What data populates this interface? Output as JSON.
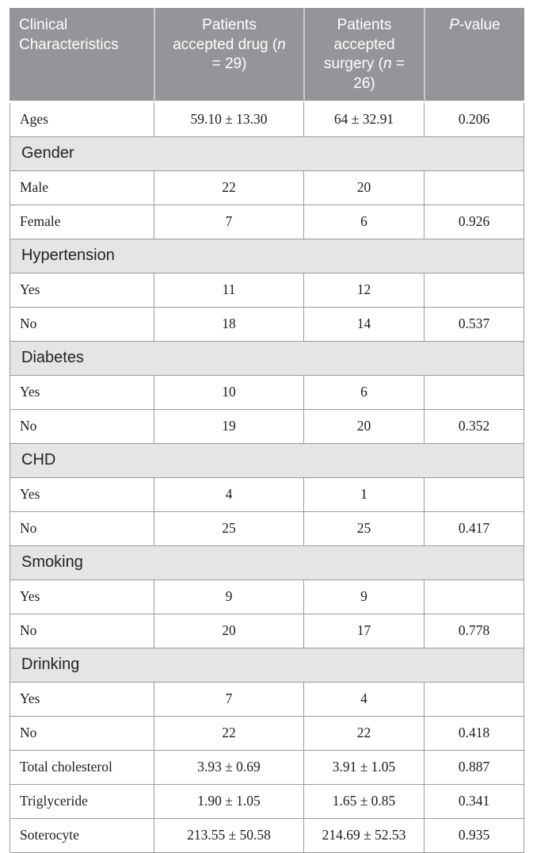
{
  "colors": {
    "header_bg": "#939598",
    "header_text": "#ffffff",
    "header_divider": "#c7c9ca",
    "section_bg": "#e4e5e5",
    "grid_border": "#9b9b9b",
    "body_text": "#1c1c1c"
  },
  "table": {
    "columns": [
      {
        "id": "characteristic",
        "segments": [
          {
            "t": "Clinical Characteristics"
          }
        ]
      },
      {
        "id": "drug",
        "segments": [
          {
            "t": "Patients accepted drug ("
          },
          {
            "t": "n",
            "i": true
          },
          {
            "t": " = 29)"
          }
        ]
      },
      {
        "id": "surgery",
        "segments": [
          {
            "t": "Patients accepted surgery ("
          },
          {
            "t": "n",
            "i": true
          },
          {
            "t": " = 26)"
          }
        ]
      },
      {
        "id": "pvalue",
        "segments": [
          {
            "t": "P",
            "i": true
          },
          {
            "t": "-value"
          }
        ]
      }
    ],
    "rows": [
      {
        "type": "data",
        "label": "Ages",
        "drug": "59.10 ± 13.30",
        "surgery": "64 ± 32.91",
        "p": "0.206"
      },
      {
        "type": "section",
        "label": "Gender"
      },
      {
        "type": "data",
        "label": "Male",
        "drug": "22",
        "surgery": "20",
        "p": ""
      },
      {
        "type": "data",
        "label": "Female",
        "drug": "7",
        "surgery": "6",
        "p": "0.926"
      },
      {
        "type": "section",
        "label": "Hypertension"
      },
      {
        "type": "data",
        "label": "Yes",
        "drug": "11",
        "surgery": "12",
        "p": ""
      },
      {
        "type": "data",
        "label": "No",
        "drug": "18",
        "surgery": "14",
        "p": "0.537"
      },
      {
        "type": "section",
        "label": "Diabetes"
      },
      {
        "type": "data",
        "label": "Yes",
        "drug": "10",
        "surgery": "6",
        "p": ""
      },
      {
        "type": "data",
        "label": "No",
        "drug": "19",
        "surgery": "20",
        "p": "0.352"
      },
      {
        "type": "section",
        "label": "CHD"
      },
      {
        "type": "data",
        "label": "Yes",
        "drug": "4",
        "surgery": "1",
        "p": ""
      },
      {
        "type": "data",
        "label": "No",
        "drug": "25",
        "surgery": "25",
        "p": "0.417"
      },
      {
        "type": "section",
        "label": "Smoking"
      },
      {
        "type": "data",
        "label": "Yes",
        "drug": "9",
        "surgery": "9",
        "p": ""
      },
      {
        "type": "data",
        "label": "No",
        "drug": "20",
        "surgery": "17",
        "p": "0.778"
      },
      {
        "type": "section",
        "label": "Drinking"
      },
      {
        "type": "data",
        "label": "Yes",
        "drug": "7",
        "surgery": "4",
        "p": ""
      },
      {
        "type": "data",
        "label": "No",
        "drug": "22",
        "surgery": "22",
        "p": "0.418"
      },
      {
        "type": "data",
        "label": "Total cholesterol",
        "drug": "3.93 ± 0.69",
        "surgery": "3.91 ± 1.05",
        "p": "0.887"
      },
      {
        "type": "data",
        "label": "Triglyceride",
        "drug": "1.90 ± 1.05",
        "surgery": "1.65 ± 0.85",
        "p": "0.341"
      },
      {
        "type": "data",
        "label": "Soterocyte",
        "drug": "213.55 ± 50.58",
        "surgery": "214.69 ± 52.53",
        "p": "0.935"
      }
    ]
  }
}
